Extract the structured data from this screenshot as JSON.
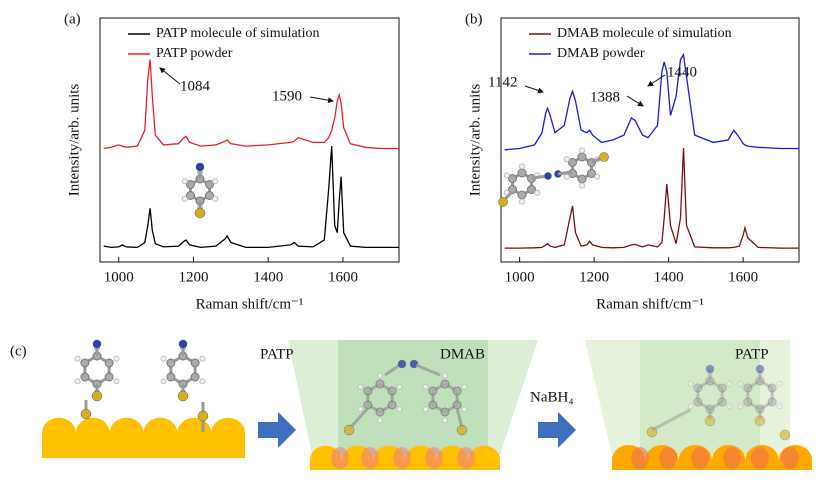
{
  "chart_data": [
    {
      "type": "line",
      "label": "(a)",
      "ylabel": "Intensity/arb. units",
      "xlabel": "Raman shift/cm⁻¹",
      "xlim": [
        950,
        1750
      ],
      "xticks": [
        1000,
        1200,
        1400,
        1600
      ],
      "ylim": [
        0,
        10
      ],
      "x": [
        960,
        980,
        1000,
        1010,
        1020,
        1050,
        1070,
        1078,
        1084,
        1090,
        1098,
        1120,
        1160,
        1175,
        1180,
        1190,
        1220,
        1260,
        1285,
        1290,
        1300,
        1340,
        1400,
        1460,
        1470,
        1480,
        1520,
        1550,
        1562,
        1570,
        1578,
        1585,
        1590,
        1595,
        1602,
        1620,
        1660,
        1700,
        1750
      ],
      "series": [
        {
          "name": "PATP molecule of simulation",
          "color": "#000000",
          "values": [
            0.65,
            0.6,
            0.62,
            0.7,
            0.62,
            0.6,
            0.8,
            1.5,
            2.2,
            1.3,
            0.75,
            0.62,
            0.65,
            0.85,
            0.9,
            0.7,
            0.6,
            0.65,
            0.95,
            1.07,
            0.8,
            0.6,
            0.6,
            0.7,
            0.8,
            0.65,
            0.62,
            0.9,
            3.0,
            4.75,
            1.5,
            1.2,
            2.5,
            3.5,
            1.2,
            0.65,
            0.6,
            0.6,
            0.6
          ]
        },
        {
          "name": "PATP powder",
          "color": "#e8202a",
          "values": [
            4.65,
            4.7,
            4.8,
            4.75,
            4.7,
            4.75,
            5.4,
            7.5,
            8.3,
            6.8,
            5.2,
            4.8,
            4.85,
            5.1,
            5.15,
            4.9,
            4.75,
            4.8,
            4.95,
            5.0,
            4.85,
            4.75,
            4.8,
            4.9,
            4.95,
            5.1,
            4.9,
            4.9,
            5.1,
            5.4,
            5.9,
            6.6,
            6.85,
            6.5,
            5.5,
            4.85,
            4.7,
            4.65,
            4.65
          ]
        }
      ],
      "annotations": [
        "1084",
        "1590"
      ]
    },
    {
      "type": "line",
      "label": "(b)",
      "ylabel": "Intensity/arb. units",
      "xlabel": "Raman shift/cm⁻¹",
      "xlim": [
        950,
        1750
      ],
      "xticks": [
        1000,
        1200,
        1400,
        1600
      ],
      "ylim": [
        0,
        10
      ],
      "x": [
        960,
        1000,
        1040,
        1060,
        1070,
        1075,
        1082,
        1095,
        1120,
        1135,
        1142,
        1150,
        1165,
        1180,
        1188,
        1196,
        1220,
        1250,
        1280,
        1300,
        1310,
        1330,
        1345,
        1370,
        1382,
        1388,
        1395,
        1405,
        1420,
        1432,
        1440,
        1448,
        1470,
        1520,
        1560,
        1575,
        1590,
        1600,
        1605,
        1612,
        1640,
        1700,
        1750
      ],
      "series": [
        {
          "name": "DMAB molecule of simulation",
          "color": "#7a0f0f",
          "values": [
            0.57,
            0.57,
            0.58,
            0.6,
            0.7,
            0.75,
            0.65,
            0.6,
            0.7,
            1.8,
            2.3,
            1.2,
            0.65,
            0.7,
            0.85,
            0.7,
            0.6,
            0.58,
            0.6,
            0.7,
            0.72,
            0.62,
            0.7,
            0.62,
            0.8,
            1.8,
            3.2,
            1.5,
            0.75,
            1.8,
            4.67,
            1.5,
            0.62,
            0.58,
            0.58,
            0.6,
            0.65,
            1.1,
            1.4,
            1.0,
            0.6,
            0.57,
            0.57
          ]
        },
        {
          "name": "DMAB powder",
          "color": "#1a1ae0",
          "values": [
            4.6,
            4.65,
            4.8,
            5.3,
            6.1,
            6.3,
            6.0,
            5.3,
            5.6,
            6.7,
            7.0,
            6.6,
            5.4,
            5.3,
            5.4,
            5.2,
            4.9,
            5.0,
            5.2,
            5.9,
            5.8,
            5.2,
            5.1,
            5.6,
            7.8,
            8.2,
            7.8,
            6.0,
            6.8,
            8.3,
            8.5,
            7.6,
            5.2,
            4.9,
            5.0,
            5.4,
            5.1,
            4.85,
            4.8,
            4.75,
            4.7,
            4.65,
            4.65
          ]
        }
      ],
      "annotations": [
        "1142",
        "1388",
        "1440"
      ]
    }
  ],
  "figure_c": {
    "label": "(c)",
    "labels": [
      "PATP",
      "DMAB",
      "NaBH₄",
      "PATP"
    ]
  }
}
